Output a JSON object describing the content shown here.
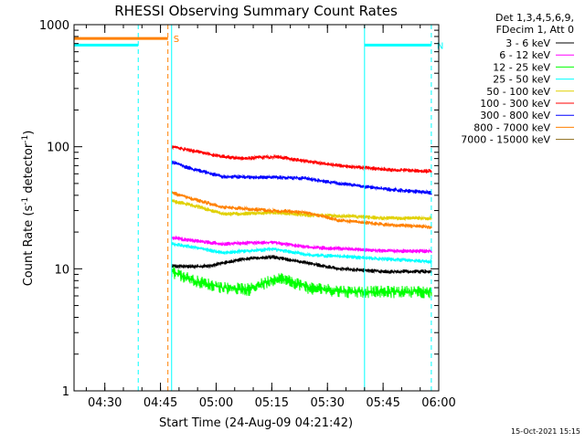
{
  "chart_data": {
    "type": "line",
    "title": "RHESSI Observing Summary Count Rates",
    "xlabel": "Start Time (24-Aug-09 04:21:42)",
    "ylabel_main": "Count Rate (s",
    "ylabel_sup1": "-1",
    "ylabel_mid": " detector",
    "ylabel_sup2": "-1",
    "ylabel_end": ")",
    "yscale": "log",
    "ylim": [
      1,
      1000
    ],
    "xlim": [
      "04:21:42",
      "06:00:00"
    ],
    "x_ticks": [
      "04:30",
      "04:45",
      "05:00",
      "05:15",
      "05:30",
      "05:45",
      "06:00"
    ],
    "y_ticks": [
      {
        "value": 1,
        "label": "1"
      },
      {
        "value": 10,
        "label": "10"
      },
      {
        "value": 100,
        "label": "100"
      },
      {
        "value": 1000,
        "label": "1000"
      }
    ],
    "legend_header": [
      "Det 1,3,4,5,6,9,",
      "FDecim 1, Att 0"
    ],
    "series": [
      {
        "name": "3 - 6 keV",
        "color": "#000000",
        "values": [
          [
            4.8,
            10.5
          ],
          [
            4.97,
            10.5
          ],
          [
            5.12,
            12.0
          ],
          [
            5.25,
            12.5
          ],
          [
            5.37,
            11.5
          ],
          [
            5.55,
            10.0
          ],
          [
            5.76,
            9.5
          ],
          [
            5.97,
            9.5
          ]
        ]
      },
      {
        "name": "6 - 12 keV",
        "color": "#ff00ff",
        "values": [
          [
            4.8,
            18.0
          ],
          [
            4.9,
            17.0
          ],
          [
            5.03,
            16.0
          ],
          [
            5.25,
            16.5
          ],
          [
            5.42,
            15.0
          ],
          [
            5.6,
            14.5
          ],
          [
            5.76,
            14.0
          ],
          [
            5.97,
            14.0
          ]
        ]
      },
      {
        "name": "12 - 25 keV",
        "color": "#00ff00",
        "values": [
          [
            4.8,
            9.5
          ],
          [
            4.9,
            8.0
          ],
          [
            5.03,
            7.0
          ],
          [
            5.15,
            6.8
          ],
          [
            5.28,
            8.5
          ],
          [
            5.42,
            7.0
          ],
          [
            5.6,
            6.5
          ],
          [
            5.76,
            6.5
          ],
          [
            5.97,
            6.5
          ]
        ]
      },
      {
        "name": "25 - 50 keV",
        "color": "#00ffff",
        "values": [
          [
            4.8,
            16.0
          ],
          [
            4.9,
            15.0
          ],
          [
            5.03,
            13.5
          ],
          [
            5.25,
            14.5
          ],
          [
            5.42,
            13.0
          ],
          [
            5.6,
            12.5
          ],
          [
            5.76,
            12.0
          ],
          [
            5.97,
            11.5
          ]
        ]
      },
      {
        "name": "50 - 100 keV",
        "color": "#e0d000",
        "values": [
          [
            4.8,
            36.0
          ],
          [
            4.9,
            33.0
          ],
          [
            5.03,
            28.0
          ],
          [
            5.25,
            29.0
          ],
          [
            5.42,
            27.5
          ],
          [
            5.6,
            27.0
          ],
          [
            5.76,
            26.0
          ],
          [
            5.97,
            26.0
          ]
        ]
      },
      {
        "name": "100 - 300 keV",
        "color": "#ff0000",
        "values": [
          [
            4.8,
            100.0
          ],
          [
            4.9,
            92.0
          ],
          [
            5.03,
            83.0
          ],
          [
            5.13,
            80.0
          ],
          [
            5.27,
            83.0
          ],
          [
            5.4,
            76.0
          ],
          [
            5.55,
            70.0
          ],
          [
            5.76,
            65.0
          ],
          [
            5.97,
            63.0
          ]
        ]
      },
      {
        "name": "300 - 800 keV",
        "color": "#0000ff",
        "values": [
          [
            4.8,
            75.0
          ],
          [
            4.9,
            65.0
          ],
          [
            5.03,
            57.0
          ],
          [
            5.27,
            56.0
          ],
          [
            5.4,
            55.0
          ],
          [
            5.55,
            50.0
          ],
          [
            5.76,
            45.0
          ],
          [
            5.97,
            42.0
          ]
        ]
      },
      {
        "name": "800 - 7000 keV",
        "color": "#ff8000",
        "values": [
          [
            4.8,
            42.0
          ],
          [
            4.9,
            37.0
          ],
          [
            5.03,
            32.0
          ],
          [
            5.25,
            30.0
          ],
          [
            5.4,
            29.0
          ],
          [
            5.55,
            25.0
          ],
          [
            5.76,
            23.0
          ],
          [
            5.97,
            22.0
          ]
        ]
      },
      {
        "name": "7000 - 15000 keV",
        "color": "#8b6914",
        "values": []
      }
    ],
    "segments": [
      {
        "label": "",
        "color": "#00ffff",
        "x0": "04:21:42",
        "x1": "04:39:00",
        "y": 680
      },
      {
        "label": "N",
        "color": "#00ffff",
        "x0": "05:40:00",
        "x1": "05:58:00",
        "y": 680
      },
      {
        "label": "S",
        "color": "#ff8000",
        "x0": "04:21:42",
        "x1": "04:47:00",
        "y": 770
      }
    ],
    "vlines": [
      {
        "x": "04:39:00",
        "color": "#00ffff",
        "style": "dashed"
      },
      {
        "x": "04:47:00",
        "color": "#ff8000",
        "style": "dashed"
      },
      {
        "x": "04:48:00",
        "color": "#00ffff",
        "style": "solid"
      },
      {
        "x": "05:40:00",
        "color": "#00ffff",
        "style": "solid"
      },
      {
        "x": "05:58:00",
        "color": "#00ffff",
        "style": "dashed"
      }
    ],
    "grid": false,
    "legend_position": "right"
  },
  "footer_timestamp": "15-Oct-2021 15:15"
}
